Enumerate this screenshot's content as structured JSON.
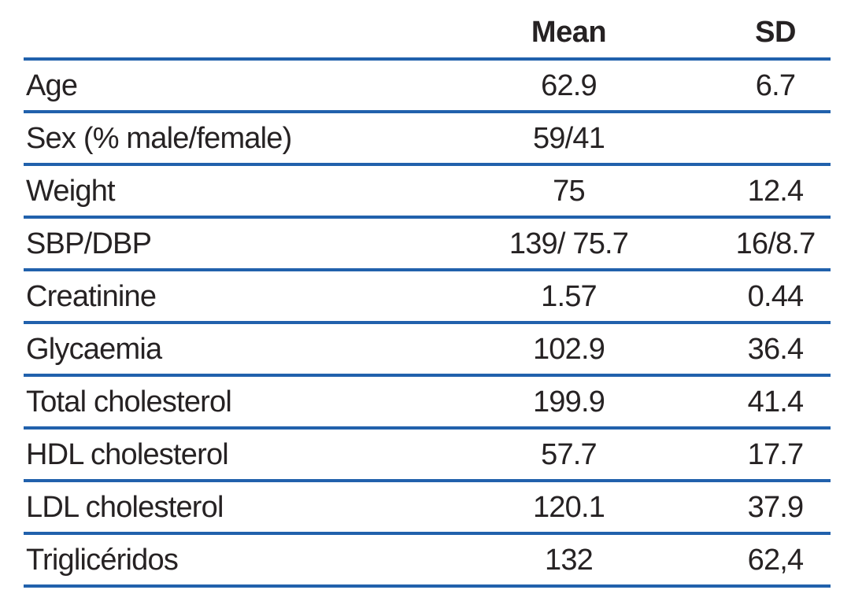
{
  "table": {
    "columns": [
      {
        "key": "label",
        "label": ""
      },
      {
        "key": "mean",
        "label": "Mean"
      },
      {
        "key": "sd",
        "label": "SD"
      }
    ],
    "rows": [
      {
        "label": "Age",
        "mean": "62.9",
        "sd": "6.7"
      },
      {
        "label": "Sex (% male/female)",
        "mean": "59/41",
        "sd": ""
      },
      {
        "label": "Weight",
        "mean": "75",
        "sd": "12.4"
      },
      {
        "label": "SBP/DBP",
        "mean": "139/ 75.7",
        "sd": "16/8.7"
      },
      {
        "label": "Creatinine",
        "mean": "1.57",
        "sd": "0.44"
      },
      {
        "label": "Glycaemia",
        "mean": "102.9",
        "sd": "36.4"
      },
      {
        "label": "Total cholesterol",
        "mean": "199.9",
        "sd": "41.4"
      },
      {
        "label": "HDL cholesterol",
        "mean": "57.7",
        "sd": "17.7"
      },
      {
        "label": "LDL cholesterol",
        "mean": "120.1",
        "sd": "37.9"
      },
      {
        "label": "Triglicéridos",
        "mean": "132",
        "sd": "62,4"
      }
    ]
  },
  "colors": {
    "rule_blue": "#2161ac",
    "text": "#262223",
    "background": "#ffffff"
  }
}
